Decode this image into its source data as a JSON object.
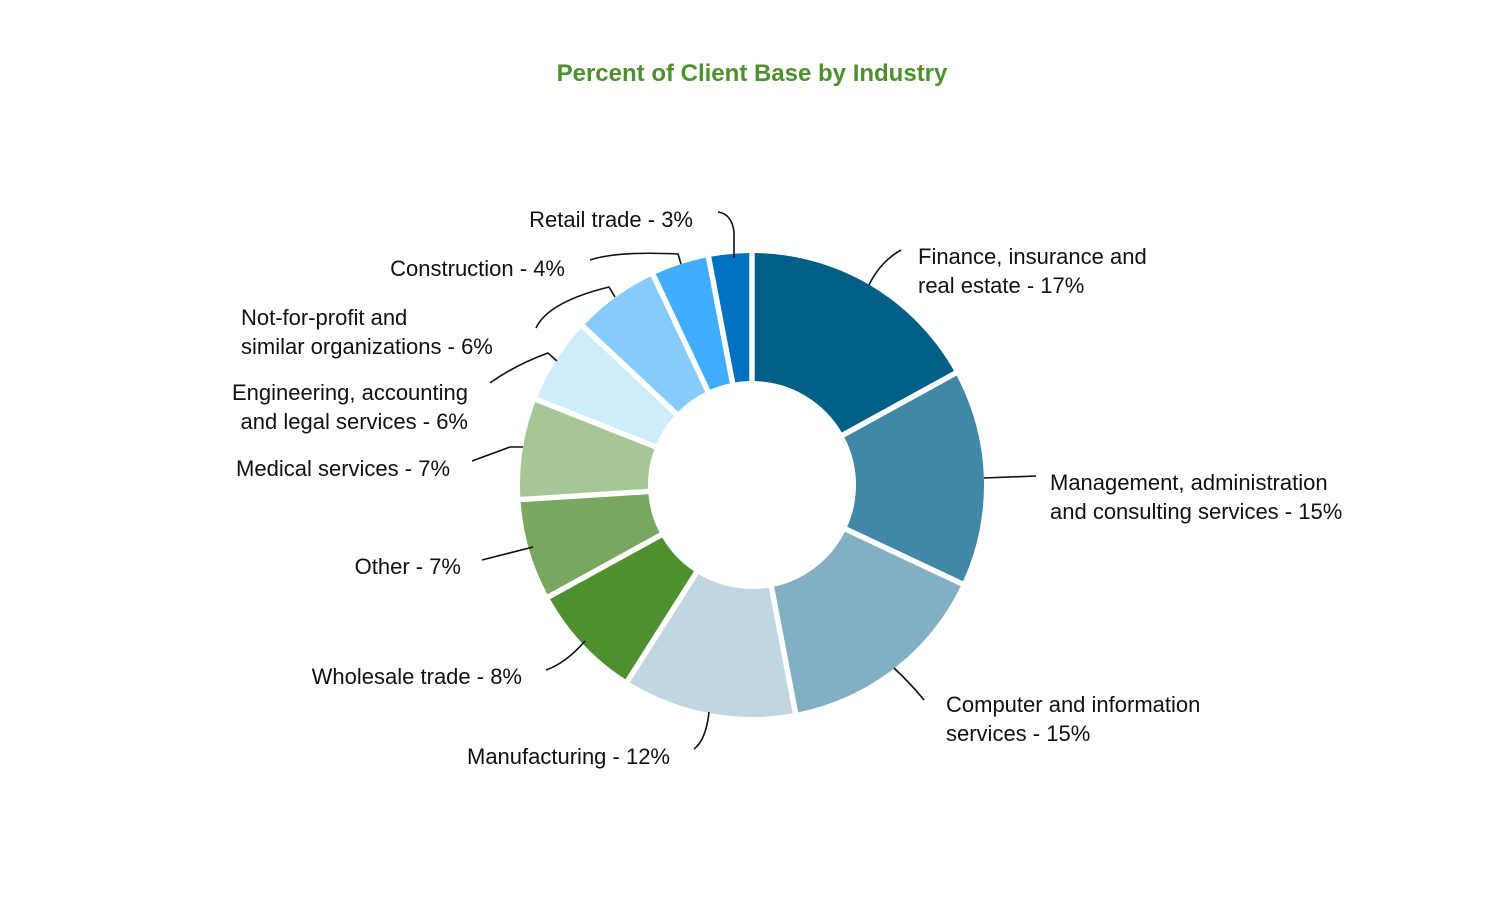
{
  "chart_data": {
    "type": "pie",
    "variant": "donut",
    "title": "Percent of Client Base by Industry",
    "unit": "%",
    "slices": [
      {
        "label": "Finance, insurance and real estate",
        "value": 17,
        "label_lines": [
          "Finance, insurance and",
          "real estate - 17%"
        ],
        "color": "#005f87"
      },
      {
        "label": "Management, administration and consulting services",
        "value": 15,
        "label_lines": [
          "Management, administration",
          "and consulting services - 15%"
        ],
        "color": "#4187a8"
      },
      {
        "label": "Computer and information services",
        "value": 15,
        "label_lines": [
          "Computer and information",
          "services - 15%"
        ],
        "color": "#83afc3"
      },
      {
        "label": "Manufacturing",
        "value": 12,
        "label_lines": [
          "Manufacturing - 12%"
        ],
        "color": "#c0d7e1"
      },
      {
        "label": "Wholesale trade",
        "value": 8,
        "label_lines": [
          "Wholesale trade - 8%"
        ],
        "color": "#4e8f2e"
      },
      {
        "label": "Other",
        "value": 7,
        "label_lines": [
          "Other - 7%"
        ],
        "color": "#7aa75f"
      },
      {
        "label": "Medical services",
        "value": 7,
        "label_lines": [
          "Medical services - 7%"
        ],
        "color": "#a6c795"
      },
      {
        "label": "Engineering, accounting and legal services",
        "value": 6,
        "label_lines": [
          "Engineering, accounting",
          "and legal services - 6%"
        ],
        "color": "#cfecfb"
      },
      {
        "label": "Not-for-profit and similar organizations",
        "value": 6,
        "label_lines": [
          "Not-for-profit and",
          "similar organizations - 6%"
        ],
        "color": "#86cbfc"
      },
      {
        "label": "Construction",
        "value": 4,
        "label_lines": [
          "Construction - 4%"
        ],
        "color": "#40aefc"
      },
      {
        "label": "Retail trade",
        "value": 3,
        "label_lines": [
          "Retail trade - 3%"
        ],
        "color": "#0271c1"
      }
    ]
  }
}
